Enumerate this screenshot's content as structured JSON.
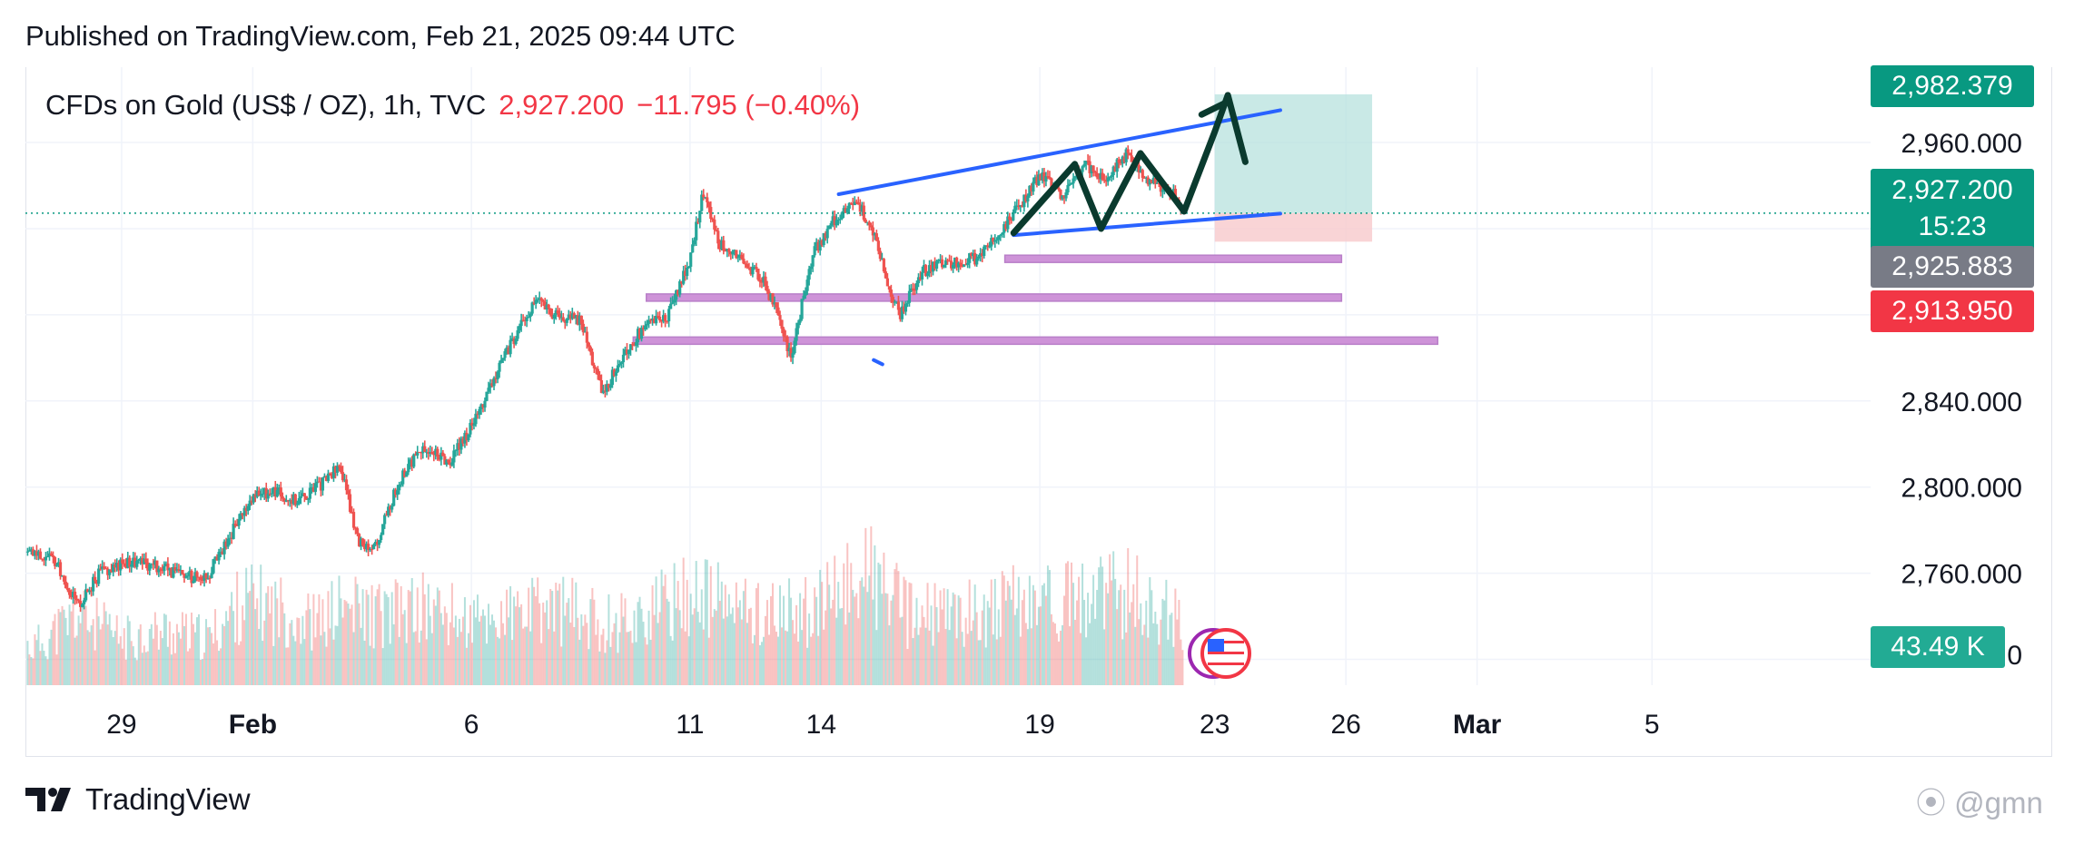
{
  "header": {
    "published": "Published on TradingView.com, Feb 21, 2025 09:44 UTC"
  },
  "legend": {
    "symbol": "CFDs on Gold (US$ / OZ), 1h, TVC",
    "price": "2,927.200",
    "change": "−11.795 (−0.40%)"
  },
  "price_tags": {
    "target": "2,982.379",
    "current": "2,927.200",
    "countdown": "15:23",
    "grey": "2,925.883",
    "stop": "2,913.950",
    "volume": "43.49 K"
  },
  "footer": {
    "brand": "TradingView",
    "watermark": "@gmn"
  },
  "colors": {
    "up": "#26a69a",
    "down": "#ef5350",
    "trend": "#2962ff",
    "zigzag": "#0a3a2e",
    "zone": "#ce93d8",
    "target_zone": "#b2dfdb",
    "stop_zone": "#f8c9cc"
  },
  "chart_data": {
    "type": "candlestick",
    "title": "",
    "ylabel": "",
    "xlabel": "",
    "x_ticks": [
      "29",
      "Feb",
      "6",
      "11",
      "14",
      "19",
      "23",
      "26",
      "Mar",
      "5"
    ],
    "x_tick_days": [
      29,
      32,
      37,
      42,
      45,
      50,
      54,
      57,
      60,
      64
    ],
    "y_ticks": [
      2960,
      2840,
      2800,
      2760
    ],
    "y_tick_labels": [
      "2,960.000",
      "2,840.000",
      "2,800.000",
      "2,760.000"
    ],
    "volume_axis_label": "0",
    "ylim": [
      2708,
      2995
    ],
    "x_range_days": [
      26.8,
      69
    ],
    "price_path": [
      [
        26.9,
        2770
      ],
      [
        27.5,
        2765
      ],
      [
        28.0,
        2745
      ],
      [
        28.5,
        2760
      ],
      [
        29.2,
        2766
      ],
      [
        30.0,
        2762
      ],
      [
        30.5,
        2758
      ],
      [
        31.0,
        2760
      ],
      [
        31.5,
        2778
      ],
      [
        32.0,
        2795
      ],
      [
        32.5,
        2798
      ],
      [
        33.0,
        2794
      ],
      [
        33.5,
        2800
      ],
      [
        34.0,
        2810
      ],
      [
        34.4,
        2775
      ],
      [
        34.8,
        2772
      ],
      [
        35.3,
        2800
      ],
      [
        35.8,
        2818
      ],
      [
        36.5,
        2812
      ],
      [
        37.0,
        2828
      ],
      [
        37.5,
        2850
      ],
      [
        38.0,
        2870
      ],
      [
        38.5,
        2887
      ],
      [
        39.0,
        2878
      ],
      [
        39.5,
        2878
      ],
      [
        40.0,
        2843
      ],
      [
        40.5,
        2862
      ],
      [
        41.0,
        2876
      ],
      [
        41.5,
        2880
      ],
      [
        42.0,
        2905
      ],
      [
        42.3,
        2938
      ],
      [
        42.7,
        2912
      ],
      [
        43.2,
        2905
      ],
      [
        43.7,
        2895
      ],
      [
        44.0,
        2880
      ],
      [
        44.3,
        2860
      ],
      [
        44.8,
        2908
      ],
      [
        45.3,
        2924
      ],
      [
        45.8,
        2933
      ],
      [
        46.2,
        2918
      ],
      [
        46.5,
        2896
      ],
      [
        46.8,
        2880
      ],
      [
        47.3,
        2900
      ],
      [
        47.9,
        2904
      ],
      [
        48.5,
        2906
      ],
      [
        49.0,
        2915
      ],
      [
        49.5,
        2930
      ],
      [
        50.0,
        2945
      ],
      [
        50.5,
        2935
      ],
      [
        51.0,
        2950
      ],
      [
        51.5,
        2943
      ],
      [
        52.0,
        2955
      ],
      [
        52.5,
        2942
      ],
      [
        53.0,
        2938
      ],
      [
        53.3,
        2927
      ]
    ],
    "volume_path": [
      [
        27.0,
        25
      ],
      [
        28.0,
        45
      ],
      [
        29.0,
        30
      ],
      [
        30.0,
        35
      ],
      [
        31.0,
        30
      ],
      [
        31.8,
        55
      ],
      [
        32.5,
        50
      ],
      [
        33.5,
        40
      ],
      [
        34.0,
        50
      ],
      [
        35.0,
        45
      ],
      [
        36.0,
        50
      ],
      [
        37.0,
        40
      ],
      [
        38.0,
        45
      ],
      [
        39.0,
        50
      ],
      [
        40.0,
        40
      ],
      [
        41.0,
        45
      ],
      [
        42.0,
        60
      ],
      [
        43.0,
        50
      ],
      [
        44.0,
        45
      ],
      [
        45.0,
        50
      ],
      [
        46.0,
        75
      ],
      [
        47.0,
        45
      ],
      [
        48.0,
        45
      ],
      [
        49.0,
        50
      ],
      [
        50.0,
        55
      ],
      [
        51.0,
        55
      ],
      [
        52.0,
        60
      ],
      [
        53.0,
        45
      ]
    ],
    "volume_max": 90,
    "trendlines": [
      {
        "x1": 45.4,
        "y1": 2936,
        "x2": 55.5,
        "y2": 2975
      },
      {
        "x1": 49.4,
        "y1": 2917,
        "x2": 55.5,
        "y2": 2927
      }
    ],
    "zigzag": [
      [
        49.4,
        2918
      ],
      [
        50.8,
        2950
      ],
      [
        51.4,
        2920
      ],
      [
        52.3,
        2955
      ],
      [
        53.3,
        2928
      ],
      [
        54.0,
        2965
      ],
      [
        54.3,
        2982
      ],
      [
        54.7,
        2951
      ]
    ],
    "zigzag_lead": [
      [
        53.7,
        2973
      ],
      [
        54.3,
        2979
      ]
    ],
    "horizontal_zones": [
      {
        "x1": 49.2,
        "x2": 56.9,
        "y": 2906
      },
      {
        "x1": 41.0,
        "x2": 56.9,
        "y": 2888
      },
      {
        "x1": 40.7,
        "x2": 59.1,
        "y": 2868
      }
    ],
    "position": {
      "x1": 54.0,
      "x2": 57.6,
      "entry": 2927.2,
      "target": 2982.379,
      "stop": 2913.95
    },
    "dotted_line": 2927.2,
    "stray_mark": [
      [
        46.2,
        2859
      ],
      [
        46.4,
        2857
      ]
    ]
  }
}
